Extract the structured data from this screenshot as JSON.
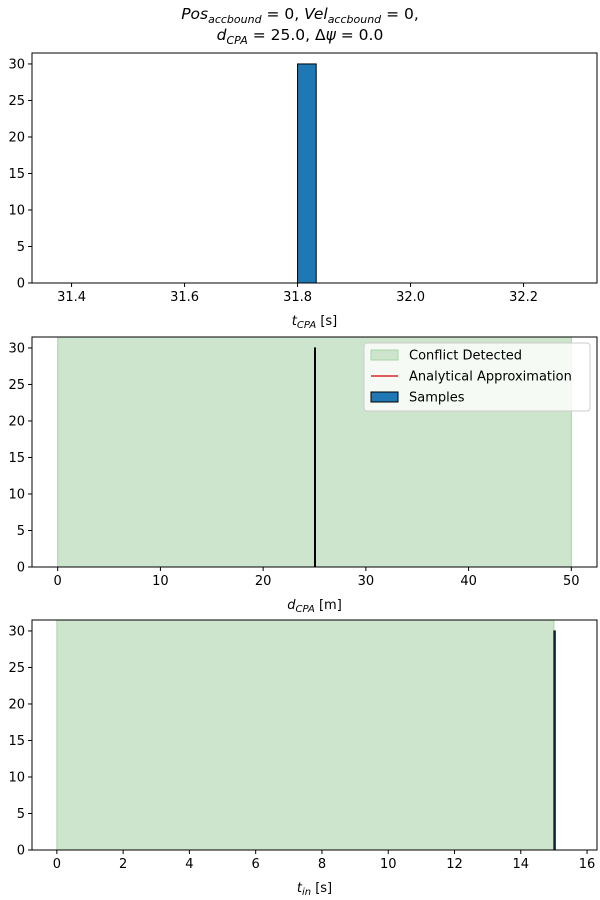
{
  "figure": {
    "title_line1": "Pos_accbound = 0, Vel_accbound = 0,",
    "title_line2": "d_CPA = 25.0, Δψ = 0.0"
  },
  "chart_data": [
    {
      "type": "bar",
      "panel": "t_cpa_histogram",
      "xlabel": "t_CPA [s]",
      "ylabel": "",
      "xlim": [
        31.33,
        32.33
      ],
      "ylim": [
        0,
        31.5
      ],
      "xticks": [
        31.4,
        31.6,
        31.8,
        32.0,
        32.2
      ],
      "xtick_labels": [
        "31.4",
        "31.6",
        "31.8",
        "32.0",
        "32.2"
      ],
      "yticks": [
        0,
        5,
        10,
        15,
        20,
        25,
        30
      ],
      "ytick_labels": [
        "0",
        "5",
        "10",
        "15",
        "20",
        "25",
        "30"
      ],
      "grid": false,
      "bars": [
        {
          "x0": 31.8,
          "x1": 31.833,
          "count": 30
        }
      ],
      "colors": {
        "bar": "#1f77b4",
        "edge": "#000000"
      }
    },
    {
      "type": "bar",
      "panel": "d_cpa_histogram",
      "xlabel": "d_CPA [m]",
      "ylabel": "",
      "xlim": [
        -2.5,
        52.5
      ],
      "ylim": [
        0,
        31.5
      ],
      "xticks": [
        0,
        10,
        20,
        30,
        40,
        50
      ],
      "xtick_labels": [
        "0",
        "10",
        "20",
        "30",
        "40",
        "50"
      ],
      "yticks": [
        0,
        5,
        10,
        15,
        20,
        25,
        30
      ],
      "ytick_labels": [
        "0",
        "5",
        "10",
        "15",
        "20",
        "25",
        "30"
      ],
      "grid": false,
      "shaded_region": {
        "x0": 0,
        "x1": 50
      },
      "bars": [
        {
          "x0": 25.0,
          "x1": 25.02,
          "count": 30
        }
      ],
      "analytical_approximation": [],
      "legend": {
        "placement": "top-right",
        "entries": [
          "Conflict Detected",
          "Analytical Approximation",
          "Samples"
        ]
      },
      "colors": {
        "bar": "#1f77b4",
        "edge": "#000000",
        "region": "#cce5cc",
        "region_edge": "#a8d5a8",
        "line": "#d62728"
      }
    },
    {
      "type": "bar",
      "panel": "t_in_histogram",
      "xlabel": "t_in [s]",
      "ylabel": "",
      "xlim": [
        -0.75,
        16.3
      ],
      "ylim": [
        0,
        31.5
      ],
      "xticks": [
        0,
        2,
        4,
        6,
        8,
        10,
        12,
        14,
        16
      ],
      "xtick_labels": [
        "0",
        "2",
        "4",
        "6",
        "8",
        "10",
        "12",
        "14",
        "16"
      ],
      "yticks": [
        0,
        5,
        10,
        15,
        20,
        25,
        30
      ],
      "ytick_labels": [
        "0",
        "5",
        "10",
        "15",
        "20",
        "25",
        "30"
      ],
      "grid": false,
      "shaded_region": {
        "x0": 0,
        "x1": 15.0
      },
      "bars": [
        {
          "x0": 15.0,
          "x1": 15.04,
          "count": 30
        }
      ],
      "colors": {
        "bar": "#1f77b4",
        "edge": "#000000",
        "region": "#cce5cc",
        "region_edge": "#a8d5a8"
      }
    }
  ]
}
